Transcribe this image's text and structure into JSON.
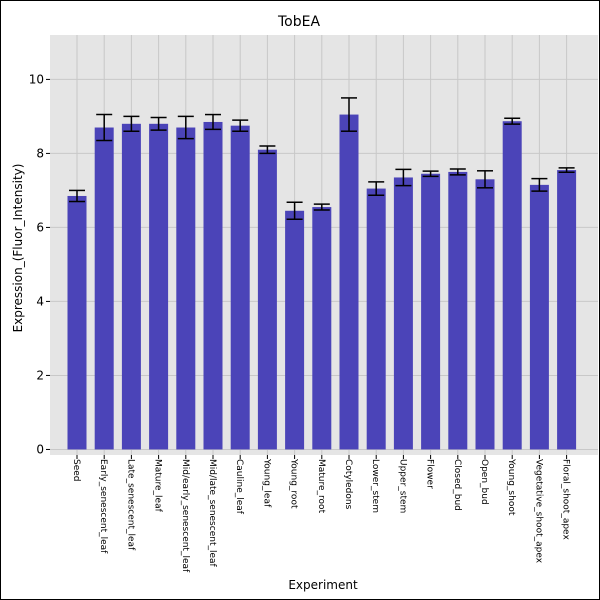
{
  "chart_data": {
    "type": "bar",
    "title": "TobEA",
    "xlabel": "Experiment",
    "ylabel": "Expression_(Fluor_Intensity)",
    "ylim": [
      -0.15,
      11.2
    ],
    "yticks": [
      0,
      2,
      4,
      6,
      8,
      10
    ],
    "grid": true,
    "bar_color": "#4b44b8",
    "plot_background": "#e5e5e5",
    "categories": [
      "Seed",
      "Early_senescent_leaf",
      "Late_senescent_leaf",
      "Mature_leaf",
      "Mid/early_senescent_leaf",
      "Mid/late_senescent_leaf",
      "Cauline_leaf",
      "Young_leaf",
      "Young_root",
      "Mature_root",
      "Cotyledons",
      "Lower_stem",
      "Upper_stem",
      "Flower",
      "Closed_bud",
      "Open_bud",
      "Young_shoot",
      "Vegetative_shoot_apex",
      "Floral_shoot_apex"
    ],
    "values": [
      6.85,
      8.7,
      8.8,
      8.8,
      8.7,
      8.85,
      8.75,
      8.1,
      6.45,
      6.55,
      9.05,
      7.05,
      7.35,
      7.45,
      7.5,
      7.3,
      8.87,
      7.15,
      7.55
    ],
    "errors": [
      0.15,
      0.35,
      0.2,
      0.17,
      0.3,
      0.2,
      0.15,
      0.1,
      0.23,
      0.08,
      0.45,
      0.18,
      0.22,
      0.07,
      0.08,
      0.23,
      0.08,
      0.17,
      0.06
    ]
  }
}
